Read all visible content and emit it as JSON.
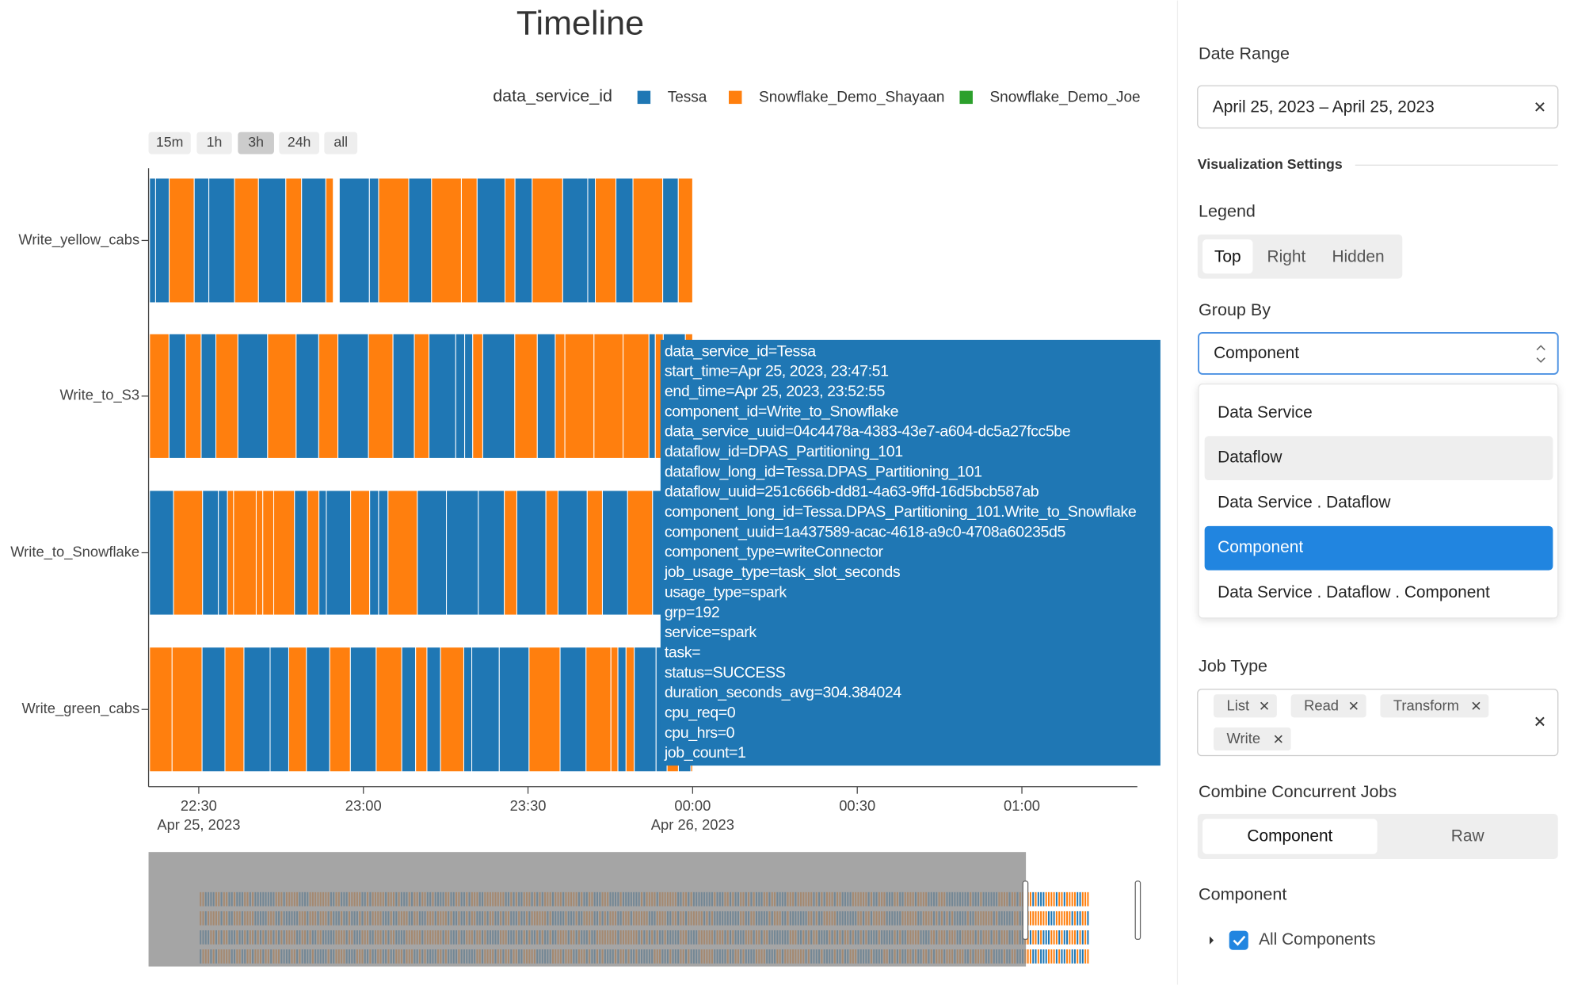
{
  "timeline": {
    "title": "Timeline",
    "legend": {
      "title": "data_service_id",
      "items": [
        {
          "name": "Tessa",
          "color": "#1f77b4"
        },
        {
          "name": "Snowflake_Demo_Shayaan",
          "color": "#ff7f0e"
        },
        {
          "name": "Snowflake_Demo_Joe",
          "color": "#2ca02c"
        }
      ]
    },
    "range_buttons": [
      "15m",
      "1h",
      "3h",
      "24h",
      "all"
    ],
    "active_range": 2,
    "rows": [
      "Write_yellow_cabs",
      "Write_to_S3",
      "Write_to_Snowflake",
      "Write_green_cabs"
    ],
    "x_ticks": [
      {
        "time": "22:30",
        "date": "Apr 25, 2023"
      },
      {
        "time": "23:00",
        "date": null
      },
      {
        "time": "23:30",
        "date": null
      },
      {
        "time": "00:00",
        "date": "Apr 26, 2023"
      },
      {
        "time": "00:30",
        "date": null
      },
      {
        "time": "01:00",
        "date": null
      }
    ],
    "tooltip": [
      "data_service_id=Tessa",
      "start_time=Apr 25, 2023, 23:47:51",
      "end_time=Apr 25, 2023, 23:52:55",
      "component_id=Write_to_Snowflake",
      "data_service_uuid=04c4478a-4383-43e7-a604-dc5a27fcc5be",
      "dataflow_id=DPAS_Partitioning_101",
      "dataflow_long_id=Tessa.DPAS_Partitioning_101",
      "dataflow_uuid=251c666b-dd81-4a63-9ffd-16d5bcb587ab",
      "component_long_id=Tessa.DPAS_Partitioning_101.Write_to_Snowflake",
      "component_uuid=1a437589-acac-4618-a9c0-4708a60235d5",
      "component_type=writeConnector",
      "job_usage_type=task_slot_seconds",
      "usage_type=spark",
      "grp=192",
      "service=spark",
      "task=",
      "status=SUCCESS",
      "duration_seconds_avg=304.384024",
      "cpu_req=0",
      "cpu_hrs=0",
      "job_count=1"
    ]
  },
  "sidebar": {
    "date_range": {
      "label": "Date Range",
      "value": "April 25, 2023 – April 25, 2023"
    },
    "visualization_settings": "Visualization Settings",
    "legend": {
      "label": "Legend",
      "options": [
        "Top",
        "Right",
        "Hidden"
      ],
      "selected": 0
    },
    "group_by": {
      "label": "Group By",
      "value": "Component",
      "options": [
        "Data Service",
        "Dataflow",
        "Data Service . Dataflow",
        "Component",
        "Data Service . Dataflow . Component"
      ],
      "hovered": 1,
      "selected": 3
    },
    "job_type": {
      "label": "Job Type",
      "tags": [
        "List",
        "Read",
        "Transform",
        "Write"
      ]
    },
    "combine": {
      "label": "Combine Concurrent Jobs",
      "options": [
        "Component",
        "Raw"
      ],
      "selected": 0
    },
    "component": {
      "label": "Component",
      "item": "All Components",
      "checked": true
    }
  }
}
